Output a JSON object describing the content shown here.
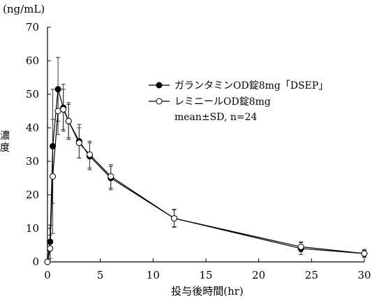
{
  "chart_data": {
    "type": "line",
    "unit_label": "(ng/mL)",
    "ylabel": "濃度",
    "xlabel": "投与後時間(hr)",
    "xlim": [
      0,
      30
    ],
    "ylim": [
      0,
      70
    ],
    "x_ticks": [
      "0",
      "5",
      "10",
      "15",
      "20",
      "25",
      "30"
    ],
    "y_ticks": [
      "0",
      "10",
      "20",
      "30",
      "40",
      "50",
      "60",
      "70"
    ],
    "grid": false,
    "legend_position": "top-right",
    "legend_note": "mean±SD, n=24",
    "series": [
      {
        "name": "ガランタミンOD錠8mg「DSEP」",
        "marker": "filled-circle",
        "color": "#000000",
        "x": [
          0,
          0.25,
          0.5,
          1,
          1.5,
          2,
          3,
          4,
          6,
          12,
          24,
          30
        ],
        "y": [
          0,
          6.0,
          34.5,
          51.5,
          46.0,
          42.0,
          36.0,
          31.5,
          25.0,
          13.0,
          4.0,
          2.5
        ],
        "sd": [
          0,
          5.0,
          17.0,
          9.5,
          7.0,
          5.5,
          5.0,
          4.0,
          3.5,
          2.7,
          1.8,
          1.2
        ]
      },
      {
        "name": "レミニールOD錠8mg",
        "marker": "open-circle",
        "color": "#000000",
        "x": [
          0,
          0.25,
          0.5,
          1,
          1.5,
          2,
          3,
          4,
          6,
          12,
          24,
          30
        ],
        "y": [
          0,
          4.0,
          25.5,
          45.0,
          45.5,
          42.0,
          35.5,
          32.0,
          25.5,
          13.0,
          4.5,
          2.5
        ],
        "sd": [
          0,
          4.0,
          17.0,
          7.0,
          6.0,
          5.0,
          4.5,
          4.0,
          3.5,
          2.5,
          1.5,
          1.0
        ]
      }
    ]
  }
}
